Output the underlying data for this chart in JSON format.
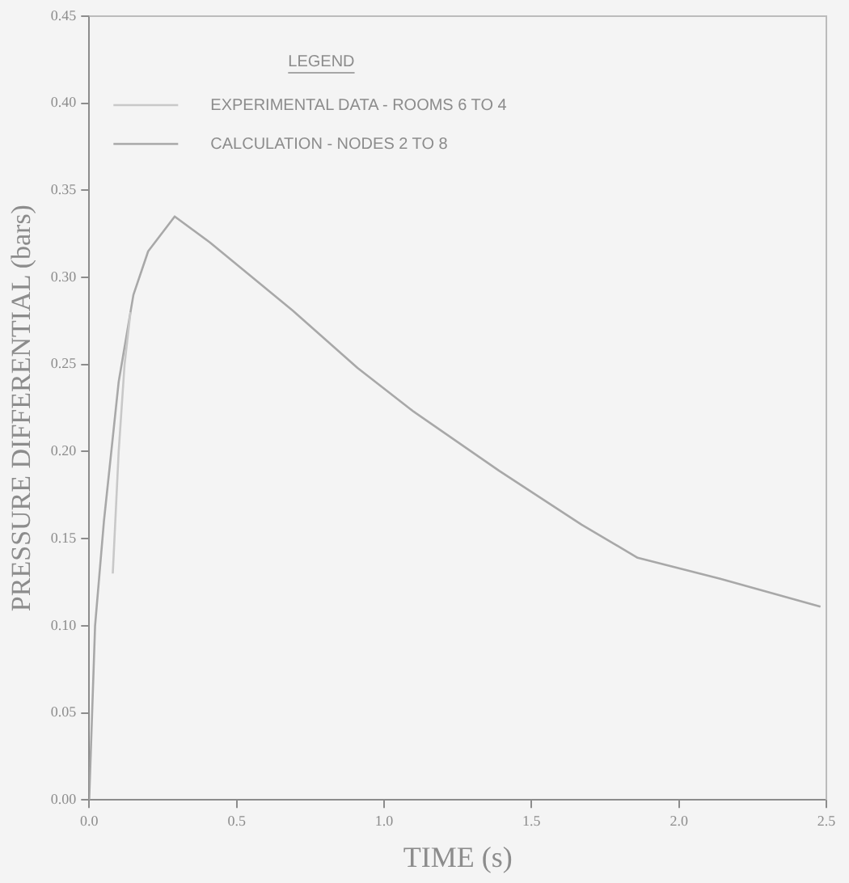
{
  "chart_data": {
    "type": "line",
    "xlabel": "TIME (s)",
    "ylabel": "PRESSURE DIFFERENTIAL (bars)",
    "legend_title": "LEGEND",
    "legend": "top left",
    "xlim": [
      0,
      2.5
    ],
    "ylim": [
      0,
      0.45
    ],
    "xticks": [
      {
        "value": 0,
        "label": "0.0"
      },
      {
        "value": 0.5,
        "label": "0.5"
      },
      {
        "value": 1,
        "label": "1.0"
      },
      {
        "value": 1.5,
        "label": "1.5"
      },
      {
        "value": 2,
        "label": "2.0"
      },
      {
        "value": 2.5,
        "label": "2.5"
      }
    ],
    "yticks": [
      {
        "value": 0,
        "label": "0.00"
      },
      {
        "value": 0.05,
        "label": "0.05"
      },
      {
        "value": 0.1,
        "label": "0.10"
      },
      {
        "value": 0.15,
        "label": "0.15"
      },
      {
        "value": 0.2,
        "label": "0.20"
      },
      {
        "value": 0.25,
        "label": "0.25"
      },
      {
        "value": 0.3,
        "label": "0.30"
      },
      {
        "value": 0.35,
        "label": "0.35"
      },
      {
        "value": 0.4,
        "label": "0.40"
      },
      {
        "value": 0.45,
        "label": "0.45"
      }
    ],
    "grid": false,
    "marker": "none",
    "line_style": "solid",
    "series": [
      {
        "name": "EXPERIMENTAL DATA - ROOMS 6 TO 4",
        "color": "#c8c8c8",
        "x": [
          0.08,
          0.1,
          0.12,
          0.14
        ],
        "values": [
          0.13,
          0.2,
          0.25,
          0.28
        ]
      },
      {
        "name": "CALCULATION - NODES 2 TO 8",
        "color": "#a8a8a8",
        "x": [
          0,
          0.02,
          0.05,
          0.1,
          0.15,
          0.2,
          0.29,
          0.41,
          0.69,
          0.91,
          1.1,
          1.39,
          1.67,
          1.86,
          2.0,
          2.14,
          2.48
        ],
        "values": [
          0,
          0.1,
          0.16,
          0.24,
          0.29,
          0.315,
          0.335,
          0.32,
          0.281,
          0.248,
          0.223,
          0.189,
          0.158,
          0.139,
          0.133,
          0.127,
          0.111
        ]
      }
    ]
  }
}
